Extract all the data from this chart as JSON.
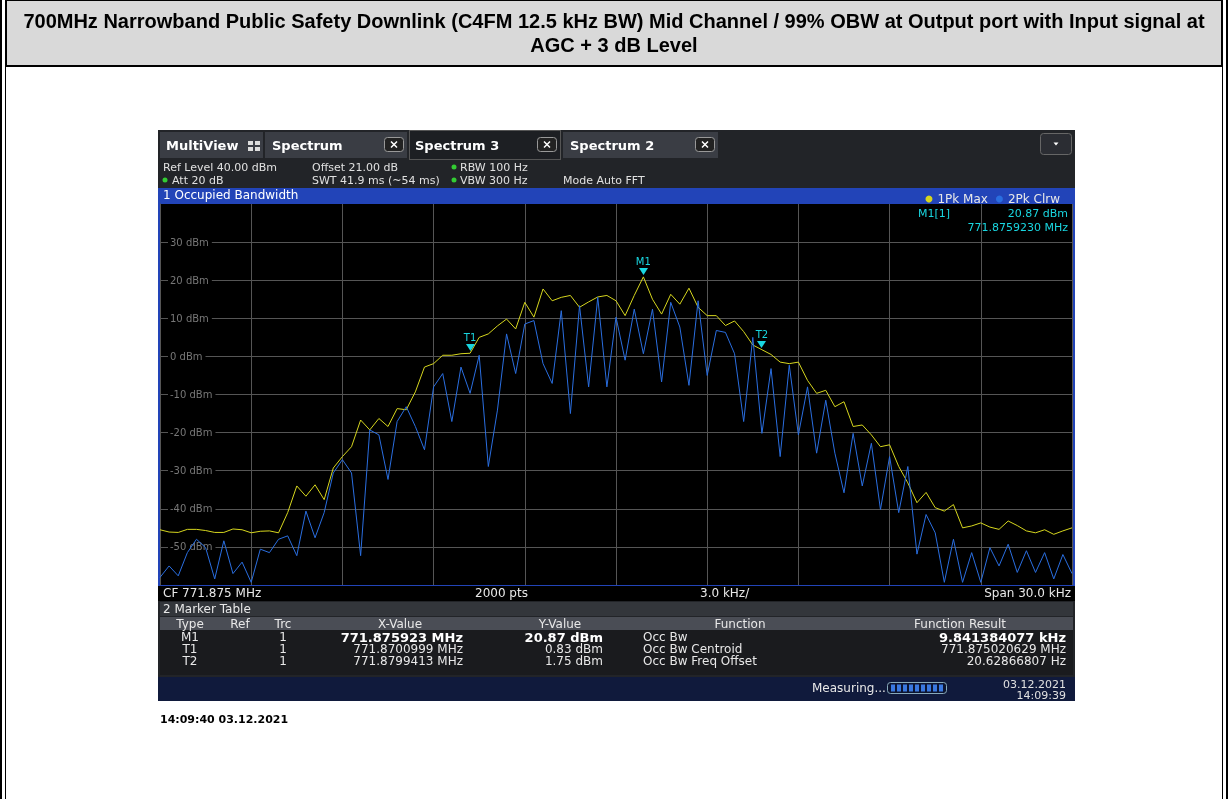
{
  "chart_data": {
    "type": "line",
    "title": "700MHz Narrowband Public Safety Downlink (C4FM 12.5 kHz BW) Mid Channel / 99% OBW at Output port with Input signal at AGC + 3 dB Level",
    "subtitle": "1 Occupied Bandwidth",
    "categories": [
      null,
      null,
      null,
      null,
      null,
      null,
      null,
      null,
      null,
      null,
      null,
      null,
      null,
      null,
      null,
      null,
      null,
      null,
      null,
      null,
      null,
      null,
      null,
      null,
      null,
      null,
      null,
      null,
      null,
      null,
      null,
      null,
      null,
      null,
      null,
      null,
      null,
      null,
      null,
      null,
      null,
      null,
      null,
      null,
      null,
      null,
      null,
      null,
      null,
      null,
      null,
      null,
      null,
      null,
      null,
      null,
      null,
      null,
      null,
      null,
      null,
      null,
      null,
      null,
      null,
      null,
      null,
      null,
      null,
      null,
      null,
      null,
      null,
      null,
      null,
      null,
      null,
      null,
      null,
      null,
      null,
      null,
      null,
      null,
      null,
      null,
      null,
      null,
      null,
      null,
      null,
      null,
      null,
      null,
      null,
      null,
      null,
      null,
      null,
      null,
      null
    ],
    "ylim": [
      -60,
      40
    ],
    "yticks": [
      {
        "value": -50,
        "label": "-50 dBm"
      },
      {
        "value": -40,
        "label": "-40 dBm"
      },
      {
        "value": -30,
        "label": "-30 dBm"
      },
      {
        "value": -20,
        "label": "-20 dBm"
      },
      {
        "value": -10,
        "label": "-10 dBm"
      },
      {
        "value": 0,
        "label": "0 dBm"
      },
      {
        "value": 10,
        "label": "10 dBm"
      },
      {
        "value": 20,
        "label": "20 dBm"
      },
      {
        "value": 30,
        "label": "30 dBm"
      }
    ],
    "tick_labels": "y",
    "grid": true,
    "legend": "top right",
    "marker": "none",
    "line_style": "solid",
    "series": [
      {
        "name": "1Pk Max",
        "color": "#d6d61e",
        "values": [
          -45.5,
          -46.1,
          -46.2,
          -45.4,
          -45.4,
          -45.7,
          -46.2,
          -46.2,
          -45.3,
          -45.5,
          -46.3,
          -45.9,
          -45.8,
          -46.3,
          -41,
          -34,
          -36.7,
          -33.7,
          -37.6,
          -29.3,
          -26.3,
          -23.7,
          -16.7,
          -19.3,
          -16.3,
          -18.4,
          -13.7,
          -14,
          -9.3,
          -2.8,
          -1.9,
          0.3,
          0.3,
          0.7,
          0.83,
          5,
          5.9,
          8,
          9.8,
          7.2,
          14.2,
          10.3,
          17.7,
          14.6,
          15.5,
          16,
          12.9,
          14.3,
          15.6,
          16,
          14.6,
          10.7,
          16,
          20.87,
          15,
          11.1,
          16.3,
          13.7,
          17.9,
          12.9,
          10.7,
          10.7,
          8.1,
          9.3,
          6.5,
          3,
          1.75,
          0.5,
          -1.5,
          -1.9,
          -1.5,
          -6.3,
          -9.7,
          -8.9,
          -13.2,
          -11.9,
          -18.4,
          -18,
          -20.6,
          -23.7,
          -23.2,
          -28.9,
          -33.2,
          -38.4,
          -35.7,
          -39.7,
          -40.6,
          -38.9,
          -45,
          -44.5,
          -43.7,
          -44.8,
          -45.4,
          -43.2,
          -44.4,
          -45.8,
          -46.3,
          -45.5,
          -46.7,
          -45.8,
          -45
        ]
      },
      {
        "name": "2Pk Clrw",
        "color": "#2a6ee0",
        "values": [
          -58,
          -55,
          -57.6,
          -51.5,
          -48,
          -50.2,
          -58.4,
          -48.4,
          -57,
          -54,
          -59.3,
          -50.6,
          -51.5,
          -48,
          -47.1,
          -52.3,
          -40.6,
          -47.6,
          -41,
          -30.6,
          -27.1,
          -30.6,
          -52.3,
          -19.3,
          -20.6,
          -32.3,
          -17.1,
          -13.2,
          -18.4,
          -24.5,
          -8,
          -4.5,
          -17.1,
          -2.8,
          -9.7,
          0.3,
          -28.9,
          -14.1,
          5.9,
          -4.5,
          8.5,
          9.4,
          -1.9,
          -7.1,
          12,
          -15,
          13.3,
          -8,
          15.5,
          -8,
          10.3,
          -1,
          12.4,
          0.7,
          12.4,
          -6.7,
          14.2,
          7.7,
          -7.6,
          14.6,
          -5,
          6.8,
          6.3,
          0.7,
          -17.1,
          5,
          -20.2,
          -3.2,
          -26.3,
          -2.3,
          -20.6,
          -8,
          -25.4,
          -11.5,
          -25.4,
          -35.8,
          -20.2,
          -34,
          -22.8,
          -40.2,
          -26.3,
          -41,
          -28.9,
          -51.9,
          -41.5,
          -46.3,
          -59.3,
          -48,
          -59.3,
          -51.5,
          -59.3,
          -50.2,
          -55,
          -49.3,
          -56.7,
          -51,
          -56.7,
          -51.5,
          -58.4,
          -52,
          -57
        ]
      }
    ],
    "annotations": [
      "MultiView",
      "Spectrum",
      "Spectrum 3",
      "Spectrum 2",
      "Ref Level 40.00 dBm",
      "Att 20 dB",
      "Offset 21.00 dB",
      "SWT 41.9 ms (~54 ms)",
      "RBW 100 Hz",
      "VBW 300 Hz",
      "Mode Auto FFT",
      "CF 771.875 MHz",
      "2000 pts",
      "3.0 kHz/",
      "Span 30.0 kHz",
      "2 Marker Table",
      "Type",
      "Ref",
      "Trc",
      "X-Value",
      "Y-Value",
      "Function",
      "Function Result",
      "M1",
      "1",
      "771.875923 MHz",
      "20.87 dBm",
      "Occ Bw",
      "9.841384077 kHz",
      "T1",
      "1",
      "771.8700999 MHz",
      "0.83 dBm",
      "Occ Bw Centroid",
      "771.875020629 MHz",
      "T2",
      "1",
      "771.8799413 MHz",
      "1.75 dBm",
      "Occ Bw Freq Offset",
      "20.62866807 Hz",
      "Measuring...",
      "03.12.2021",
      "14:09:39",
      "14:09:40  03.12.2021",
      "M1[1]",
      "20.87 dBm",
      "771.8759230 MHz",
      {
        "text": "M1",
        "y": 20.87
      },
      {
        "text": "T1",
        "y": 0.83
      },
      {
        "text": "T2",
        "y": 1.75
      }
    ]
  }
}
